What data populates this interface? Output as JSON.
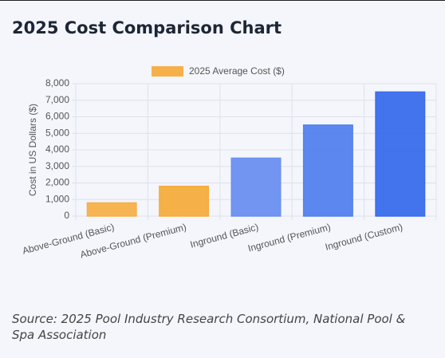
{
  "chart_data": {
    "type": "bar",
    "title": "2025 Cost Comparison Chart",
    "legend_label": "2025 Average Cost ($)",
    "legend_color": "#f6b04a",
    "y_label": "Cost in US Dollars ($)",
    "categories": [
      "Above-Ground (Basic)",
      "Above-Ground (Premium)",
      "Inground (Basic)",
      "Inground (Premium)",
      "Inground (Custom)"
    ],
    "values": [
      800,
      1800,
      3500,
      5500,
      7500
    ],
    "colors": [
      "#f6b04a",
      "#f6ac3e",
      "#6a8ff0",
      "#5281ee",
      "#3a6ced"
    ],
    "ylim": [
      0,
      8000
    ],
    "yticks": [
      0,
      {
        "value": 1000,
        "label": "1,000"
      },
      {
        "value": 2000,
        "label": "2,000"
      },
      {
        "value": 3000,
        "label": "3,000"
      },
      {
        "value": 4000,
        "label": "4,000"
      },
      {
        "value": 5000,
        "label": "5,000"
      },
      {
        "value": 6000,
        "label": "6,000"
      },
      {
        "value": 7000,
        "label": "7,000"
      },
      {
        "value": 8000,
        "label": "8,000"
      }
    ],
    "grid": true,
    "source": "Source: 2025 Pool Industry Research Consortium, National Pool & Spa Association"
  }
}
